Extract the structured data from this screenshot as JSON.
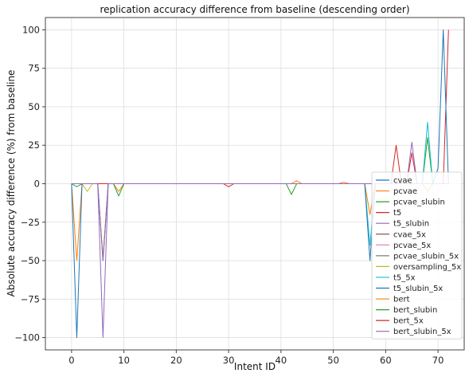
{
  "chart_data": {
    "type": "line",
    "title": "replication accuracy difference from baseline (descending order)",
    "xlabel": "Intent ID",
    "ylabel": "Absolute accuracy difference (%) from baseline",
    "xlim": [
      -5,
      75
    ],
    "ylim": [
      -108,
      108
    ],
    "xticks": [
      0,
      10,
      20,
      30,
      40,
      50,
      60,
      70
    ],
    "yticks": [
      -100,
      -75,
      -50,
      -25,
      0,
      25,
      50,
      75,
      100
    ],
    "grid": true,
    "legend_position": "lower-right",
    "series": [
      {
        "name": "cvae",
        "color": "#1f77b4",
        "values": [
          0,
          0,
          0,
          0,
          0,
          0,
          0,
          0,
          0,
          0,
          0,
          0,
          0,
          0,
          0,
          0,
          0,
          0,
          0,
          0,
          0,
          0,
          0,
          0,
          0,
          0,
          0,
          0,
          0,
          0,
          0,
          0,
          0,
          0,
          0,
          0,
          0,
          0,
          0,
          0,
          0,
          0,
          0,
          0,
          0,
          0,
          0,
          0,
          0,
          0,
          0,
          0,
          0,
          0,
          0,
          0,
          0,
          0,
          0,
          0,
          0,
          0,
          0,
          0,
          0,
          0,
          0,
          0,
          0,
          0,
          0,
          0,
          0
        ]
      },
      {
        "name": "pcvae",
        "color": "#ff7f0e",
        "values": [
          0,
          -50,
          0,
          0,
          0,
          0,
          -48,
          0,
          0,
          -5,
          0,
          0,
          0,
          0,
          0,
          0,
          0,
          0,
          0,
          0,
          0,
          0,
          0,
          0,
          0,
          0,
          0,
          0,
          0,
          0,
          0,
          0,
          0,
          0,
          0,
          0,
          0,
          0,
          0,
          0,
          0,
          0,
          0,
          2,
          0,
          0,
          0,
          0,
          0,
          0,
          0,
          0,
          1,
          0,
          0,
          0,
          0,
          -20,
          0,
          0,
          0,
          0,
          0,
          0,
          0,
          0,
          0,
          0,
          -5,
          0,
          0,
          0,
          0
        ]
      },
      {
        "name": "pcvae_slubin",
        "color": "#2ca02c",
        "values": [
          0,
          -2,
          0,
          0,
          0,
          0,
          -50,
          0,
          0,
          -8,
          0,
          0,
          0,
          0,
          0,
          0,
          0,
          0,
          0,
          0,
          0,
          0,
          0,
          0,
          0,
          0,
          0,
          0,
          0,
          0,
          0,
          0,
          0,
          0,
          0,
          0,
          0,
          0,
          0,
          0,
          0,
          0,
          -7,
          0,
          0,
          0,
          0,
          0,
          0,
          0,
          0,
          0,
          0,
          0,
          0,
          0,
          0,
          0,
          0,
          0,
          0,
          0,
          0,
          0,
          0,
          0,
          0,
          0,
          30,
          0,
          0,
          0,
          0
        ]
      },
      {
        "name": "t5",
        "color": "#d62728",
        "values": [
          0,
          0,
          0,
          0,
          0,
          0,
          0,
          0,
          0,
          0,
          0,
          0,
          0,
          0,
          0,
          0,
          0,
          0,
          0,
          0,
          0,
          0,
          0,
          0,
          0,
          0,
          0,
          0,
          0,
          0,
          -2,
          0,
          0,
          0,
          0,
          0,
          0,
          0,
          0,
          0,
          0,
          0,
          0,
          0,
          0,
          0,
          0,
          0,
          0,
          0,
          0,
          0,
          0,
          0,
          0,
          0,
          0,
          0,
          0,
          0,
          0,
          0,
          25,
          0,
          0,
          0,
          0,
          0,
          0,
          0,
          0,
          0,
          100
        ]
      },
      {
        "name": "t5_slubin",
        "color": "#9467bd",
        "values": [
          0,
          0,
          0,
          0,
          0,
          0,
          -50,
          0,
          0,
          0,
          0,
          0,
          0,
          0,
          0,
          0,
          0,
          0,
          0,
          0,
          0,
          0,
          0,
          0,
          0,
          0,
          0,
          0,
          0,
          0,
          0,
          0,
          0,
          0,
          0,
          0,
          0,
          0,
          0,
          0,
          0,
          0,
          0,
          0,
          0,
          0,
          0,
          0,
          0,
          0,
          0,
          0,
          0,
          0,
          0,
          0,
          0,
          0,
          0,
          0,
          0,
          0,
          0,
          0,
          0,
          0,
          0,
          0,
          0,
          0,
          0,
          0,
          0
        ]
      },
      {
        "name": "cvae_5x",
        "color": "#8c564b",
        "values": [
          0,
          0,
          0,
          0,
          0,
          0,
          0,
          0,
          0,
          0,
          0,
          0,
          0,
          0,
          0,
          0,
          0,
          0,
          0,
          0,
          0,
          0,
          0,
          0,
          0,
          0,
          0,
          0,
          0,
          0,
          0,
          0,
          0,
          0,
          0,
          0,
          0,
          0,
          0,
          0,
          0,
          0,
          0,
          0,
          0,
          0,
          0,
          0,
          0,
          0,
          0,
          0,
          0,
          0,
          0,
          0,
          0,
          0,
          0,
          0,
          0,
          0,
          0,
          0,
          0,
          0,
          0,
          0,
          0,
          0,
          0,
          0,
          0
        ]
      },
      {
        "name": "pcvae_5x",
        "color": "#e377c2",
        "values": [
          0,
          0,
          0,
          0,
          0,
          0,
          0,
          0,
          0,
          0,
          0,
          0,
          0,
          0,
          0,
          0,
          0,
          0,
          0,
          0,
          0,
          0,
          0,
          0,
          0,
          0,
          0,
          0,
          0,
          0,
          0,
          0,
          0,
          0,
          0,
          0,
          0,
          0,
          0,
          0,
          0,
          0,
          0,
          0,
          0,
          0,
          0,
          0,
          0,
          0,
          0,
          0,
          0,
          0,
          0,
          0,
          0,
          0,
          0,
          0,
          0,
          0,
          0,
          0,
          0,
          0,
          0,
          0,
          0,
          0,
          0,
          0,
          0
        ]
      },
      {
        "name": "pcvae_slubin_5x",
        "color": "#7f7f7f",
        "values": [
          0,
          0,
          0,
          0,
          0,
          0,
          0,
          0,
          0,
          0,
          0,
          0,
          0,
          0,
          0,
          0,
          0,
          0,
          0,
          0,
          0,
          0,
          0,
          0,
          0,
          0,
          0,
          0,
          0,
          0,
          0,
          0,
          0,
          0,
          0,
          0,
          0,
          0,
          0,
          0,
          0,
          0,
          0,
          0,
          0,
          0,
          0,
          0,
          0,
          0,
          0,
          0,
          0,
          0,
          0,
          0,
          0,
          0,
          0,
          0,
          0,
          0,
          0,
          0,
          0,
          0,
          0,
          0,
          0,
          0,
          0,
          0,
          0
        ]
      },
      {
        "name": "oversampling_5x",
        "color": "#bcbd22",
        "values": [
          0,
          0,
          0,
          -5,
          0,
          0,
          0,
          0,
          0,
          0,
          0,
          0,
          0,
          0,
          0,
          0,
          0,
          0,
          0,
          0,
          0,
          0,
          0,
          0,
          0,
          0,
          0,
          0,
          0,
          0,
          0,
          0,
          0,
          0,
          0,
          0,
          0,
          0,
          0,
          0,
          0,
          0,
          0,
          0,
          0,
          0,
          0,
          0,
          0,
          0,
          0,
          0,
          0,
          0,
          0,
          0,
          0,
          0,
          0,
          0,
          0,
          0,
          0,
          0,
          0,
          0,
          0,
          0,
          0,
          0,
          0,
          0,
          0
        ]
      },
      {
        "name": "t5_5x",
        "color": "#17becf",
        "values": [
          0,
          0,
          0,
          0,
          0,
          0,
          0,
          0,
          0,
          0,
          0,
          0,
          0,
          0,
          0,
          0,
          0,
          0,
          0,
          0,
          0,
          0,
          0,
          0,
          0,
          0,
          0,
          0,
          0,
          0,
          0,
          0,
          0,
          0,
          0,
          0,
          0,
          0,
          0,
          0,
          0,
          0,
          0,
          0,
          0,
          0,
          0,
          0,
          0,
          0,
          0,
          0,
          0,
          0,
          0,
          0,
          0,
          -40,
          0,
          0,
          0,
          0,
          0,
          0,
          0,
          0,
          0,
          0,
          40,
          0,
          0,
          0,
          0
        ]
      },
      {
        "name": "t5_slubin_5x",
        "color": "#1f77b4",
        "values": [
          0,
          -100,
          0,
          0,
          0,
          0,
          0,
          0,
          0,
          0,
          0,
          0,
          0,
          0,
          0,
          0,
          0,
          0,
          0,
          0,
          0,
          0,
          0,
          0,
          0,
          0,
          0,
          0,
          0,
          0,
          0,
          0,
          0,
          0,
          0,
          0,
          0,
          0,
          0,
          0,
          0,
          0,
          0,
          0,
          0,
          0,
          0,
          0,
          0,
          0,
          0,
          0,
          0,
          0,
          0,
          0,
          0,
          -50,
          0,
          0,
          0,
          0,
          0,
          0,
          0,
          0,
          0,
          0,
          0,
          0,
          10,
          100,
          0
        ]
      },
      {
        "name": "bert",
        "color": "#ff7f0e",
        "values": [
          0,
          0,
          0,
          0,
          0,
          0,
          0,
          0,
          0,
          0,
          0,
          0,
          0,
          0,
          0,
          0,
          0,
          0,
          0,
          0,
          0,
          0,
          0,
          0,
          0,
          0,
          0,
          0,
          0,
          0,
          0,
          0,
          0,
          0,
          0,
          0,
          0,
          0,
          0,
          0,
          0,
          0,
          0,
          0,
          0,
          0,
          0,
          0,
          0,
          0,
          0,
          0,
          0,
          0,
          0,
          0,
          0,
          0,
          0,
          0,
          0,
          0,
          0,
          0,
          0,
          0,
          0,
          0,
          0,
          0,
          0,
          0,
          0
        ]
      },
      {
        "name": "bert_slubin",
        "color": "#2ca02c",
        "values": [
          0,
          0,
          0,
          0,
          0,
          0,
          0,
          0,
          0,
          0,
          0,
          0,
          0,
          0,
          0,
          0,
          0,
          0,
          0,
          0,
          0,
          0,
          0,
          0,
          0,
          0,
          0,
          0,
          0,
          0,
          0,
          0,
          0,
          0,
          0,
          0,
          0,
          0,
          0,
          0,
          0,
          0,
          0,
          0,
          0,
          0,
          0,
          0,
          0,
          0,
          0,
          0,
          0,
          0,
          0,
          0,
          0,
          0,
          0,
          0,
          0,
          0,
          0,
          0,
          0,
          0,
          0,
          0,
          0,
          0,
          0,
          0,
          0
        ]
      },
      {
        "name": "bert_5x",
        "color": "#d62728",
        "values": [
          0,
          0,
          0,
          0,
          0,
          0,
          0,
          0,
          0,
          0,
          0,
          0,
          0,
          0,
          0,
          0,
          0,
          0,
          0,
          0,
          0,
          0,
          0,
          0,
          0,
          0,
          0,
          0,
          0,
          0,
          0,
          0,
          0,
          0,
          0,
          0,
          0,
          0,
          0,
          0,
          0,
          0,
          0,
          0,
          0,
          0,
          0,
          0,
          0,
          0,
          0,
          0,
          0,
          0,
          0,
          0,
          0,
          0,
          0,
          0,
          0,
          0,
          0,
          0,
          0,
          20,
          0,
          0,
          0,
          0,
          0,
          0,
          0
        ]
      },
      {
        "name": "bert_slubin_5x",
        "color": "#9467bd",
        "values": [
          0,
          0,
          0,
          0,
          0,
          0,
          -100,
          0,
          0,
          0,
          0,
          0,
          0,
          0,
          0,
          0,
          0,
          0,
          0,
          0,
          0,
          0,
          0,
          0,
          0,
          0,
          0,
          0,
          0,
          0,
          0,
          0,
          0,
          0,
          0,
          0,
          0,
          0,
          0,
          0,
          0,
          0,
          0,
          0,
          0,
          0,
          0,
          0,
          0,
          0,
          0,
          0,
          0,
          0,
          0,
          0,
          0,
          0,
          0,
          0,
          0,
          0,
          0,
          0,
          0,
          27,
          0,
          0,
          0,
          0,
          0,
          0,
          0
        ]
      }
    ]
  }
}
